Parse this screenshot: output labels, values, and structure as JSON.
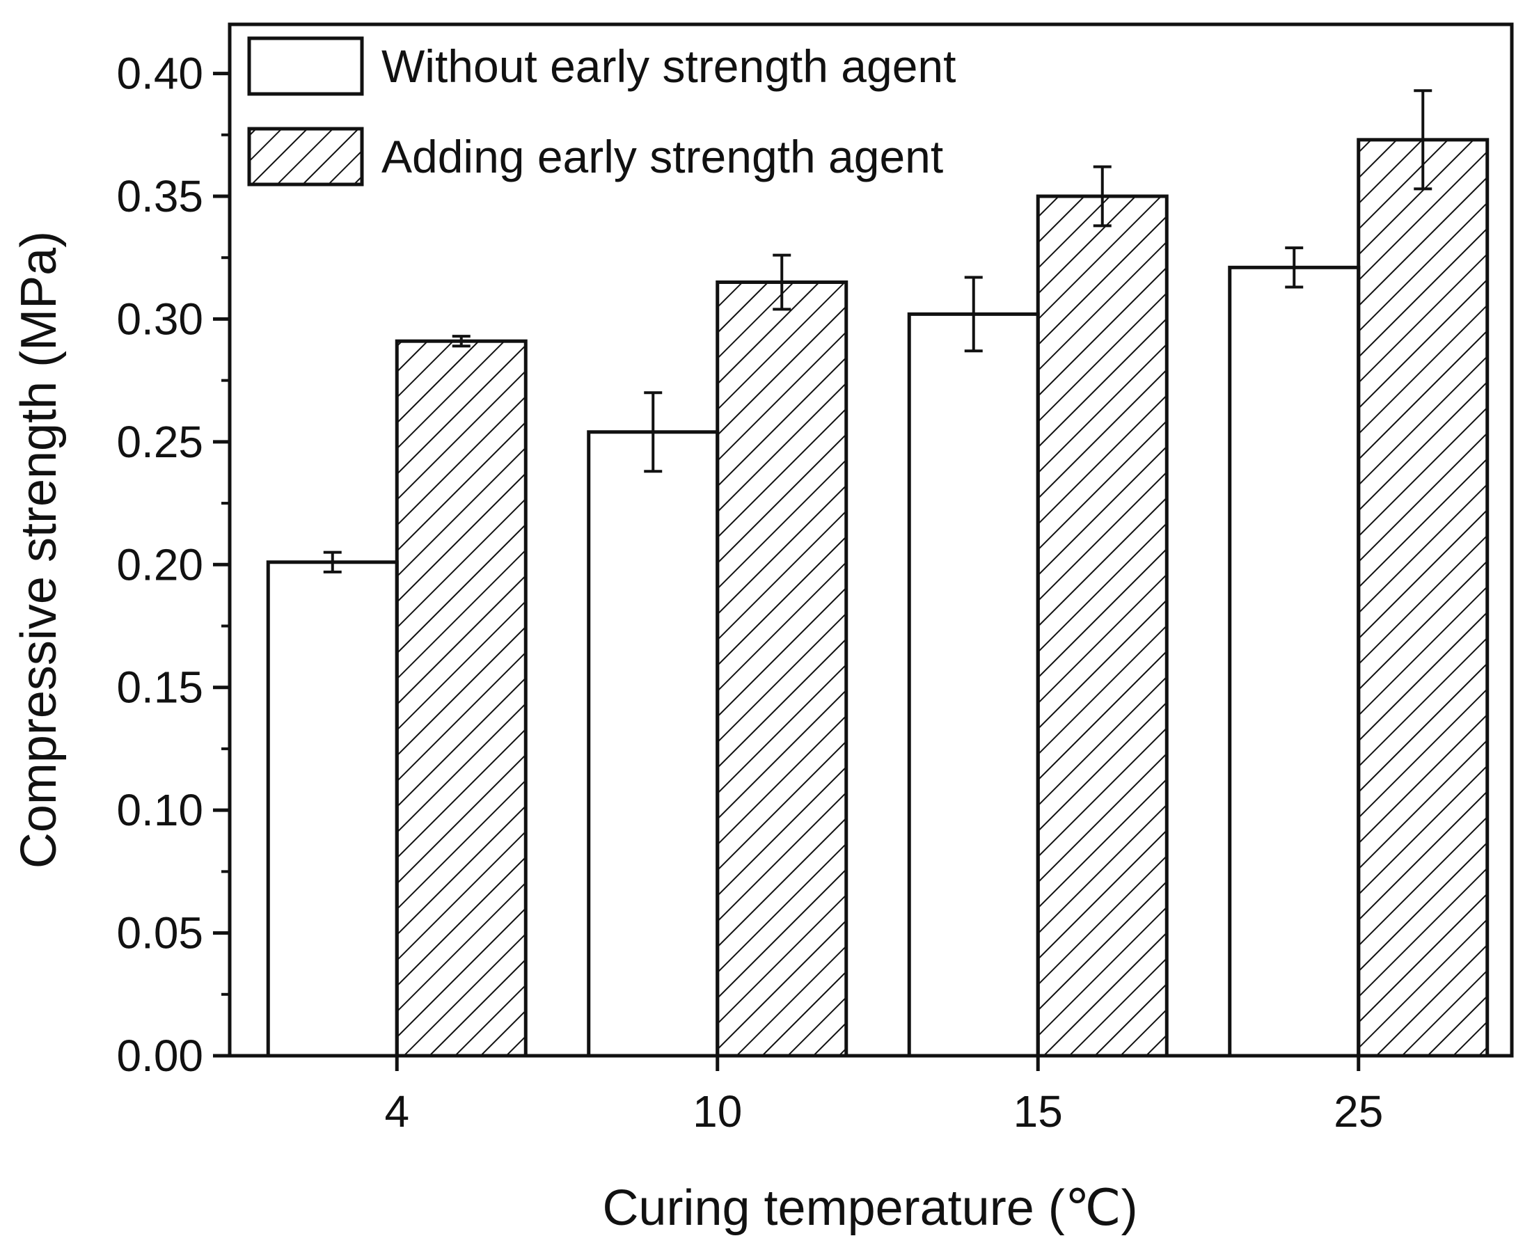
{
  "chart_data": {
    "type": "bar",
    "title": "",
    "xlabel": "Curing temperature (℃)",
    "ylabel": "Compressive strength (MPa)",
    "categories": [
      "4",
      "10",
      "15",
      "25"
    ],
    "ylim": [
      0,
      0.42
    ],
    "yticks": [
      "0.00",
      "0.05",
      "0.10",
      "0.15",
      "0.20",
      "0.25",
      "0.30",
      "0.35",
      "0.40"
    ],
    "grid": false,
    "legend_position": "top-left",
    "series": [
      {
        "name": "Without early strength agent",
        "pattern": "none",
        "values": [
          0.201,
          0.254,
          0.302,
          0.321
        ],
        "errors": [
          0.004,
          0.016,
          0.015,
          0.008
        ]
      },
      {
        "name": "Adding early strength agent",
        "pattern": "hatch",
        "values": [
          0.291,
          0.315,
          0.35,
          0.373
        ],
        "errors": [
          0.002,
          0.011,
          0.012,
          0.02
        ]
      }
    ]
  }
}
